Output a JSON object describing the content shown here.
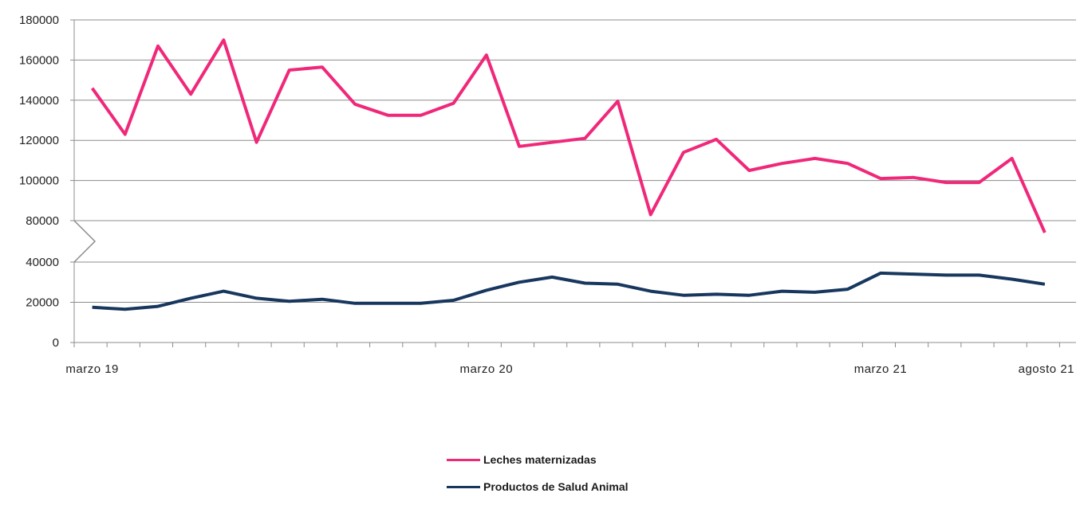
{
  "chart_data": {
    "type": "line",
    "axis_break": {
      "from": 40000,
      "to": 80000
    },
    "yticks": [
      0,
      20000,
      40000,
      80000,
      100000,
      120000,
      140000,
      160000,
      180000
    ],
    "x_labels": [
      {
        "index": 0,
        "text": "marzo 19"
      },
      {
        "index": 12,
        "text": "marzo 20"
      },
      {
        "index": 24,
        "text": "marzo 21"
      },
      {
        "index": 29,
        "text": "agosto 21"
      }
    ],
    "grid": true,
    "legend": "bottom-center",
    "series": [
      {
        "name": "Leches maternizadas",
        "color": "#f0287a",
        "values": [
          146000,
          123000,
          167000,
          143000,
          170000,
          119000,
          155000,
          156500,
          138000,
          132500,
          132500,
          138500,
          162500,
          117000,
          119000,
          121000,
          139500,
          83000,
          114000,
          120500,
          105000,
          108500,
          111000,
          108500,
          101000,
          101500,
          99000,
          99000,
          111000,
          74000
        ]
      },
      {
        "name": "Productos de Salud Animal",
        "color": "#17375e",
        "values": [
          17500,
          16500,
          18000,
          22000,
          25500,
          22000,
          20500,
          21500,
          19500,
          19500,
          19500,
          21000,
          26000,
          30000,
          32500,
          29500,
          29000,
          25500,
          23500,
          24000,
          23500,
          25500,
          25000,
          26500,
          34500,
          34000,
          33500,
          33500,
          31500,
          29000
        ]
      }
    ]
  }
}
